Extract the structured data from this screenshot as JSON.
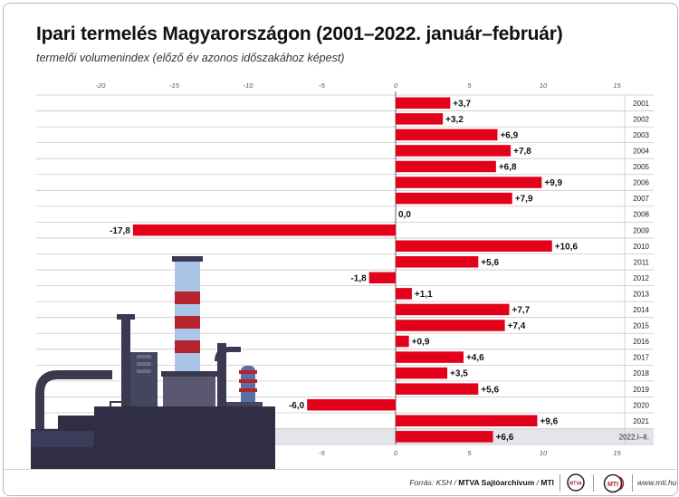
{
  "title": "Ipari termelés Magyarországon (2001–2022. január–február)",
  "subtitle": "termelői volumenindex (előző év azonos időszakához képest)",
  "colors": {
    "bar": "#e3001b",
    "grid": "#c8c8c8",
    "highlight_row": "#e5e4ec",
    "illustration_dark": "#3a3950",
    "illustration_red": "#b3242c"
  },
  "illustration": {
    "name": "factory-illustration"
  },
  "footer": {
    "source_prefix": "Forrás: KSH / ",
    "source_agency": "MTVA Sajtóarchívum",
    "source_sep": " / ",
    "source_mti": "MTI",
    "logo_mtva": "MTVA",
    "logo_mti": "MTI",
    "site": "www.mti.hu"
  },
  "chart_data": {
    "type": "bar",
    "orientation": "horizontal",
    "categories": [
      "2001",
      "2002",
      "2003",
      "2004",
      "2005",
      "2006",
      "2007",
      "2008",
      "2009",
      "2010",
      "2011",
      "2012",
      "2013",
      "2014",
      "2015",
      "2016",
      "2017",
      "2018",
      "2019",
      "2020",
      "2021",
      "2022.I–II."
    ],
    "values": [
      3.7,
      3.2,
      6.9,
      7.8,
      6.8,
      9.9,
      7.9,
      0.0,
      -17.8,
      10.6,
      5.6,
      -1.8,
      1.1,
      7.7,
      7.4,
      0.9,
      4.6,
      3.5,
      5.6,
      -6.0,
      9.6,
      6.6
    ],
    "value_labels": [
      "+3,7",
      "+3,2",
      "+6,9",
      "+7,8",
      "+6,8",
      "+9,9",
      "+7,9",
      "0,0",
      "-17,8",
      "+10,6",
      "+5,6",
      "-1,8",
      "+1,1",
      "+7,7",
      "+7,4",
      "+0,9",
      "+4,6",
      "+3,5",
      "+5,6",
      "-6,0",
      "+9,6",
      "+6,6"
    ],
    "highlight_category": "2022.I–II.",
    "x_ticks": [
      -20,
      -15,
      -10,
      -5,
      0,
      5,
      10,
      15
    ],
    "x_tick_labels": [
      "-20",
      "-15",
      "-10",
      "-5",
      "0",
      "5",
      "10",
      "15"
    ],
    "xlim": [
      -20,
      15
    ],
    "grid": true,
    "legend": "none"
  }
}
